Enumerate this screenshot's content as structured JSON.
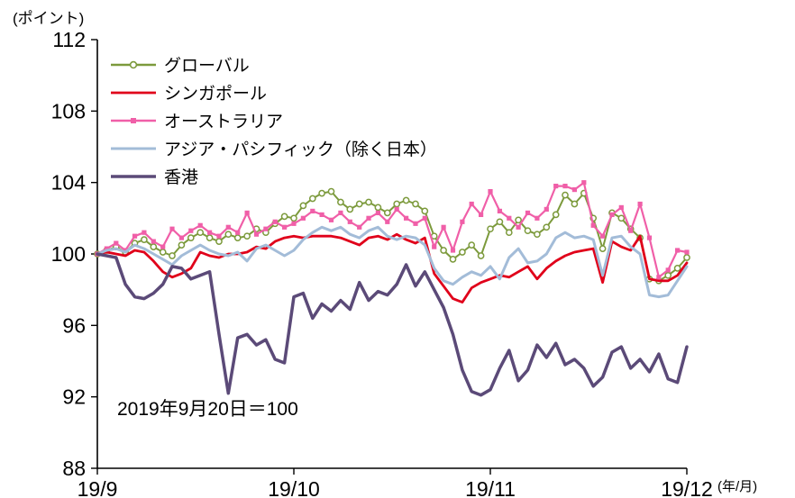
{
  "chart_data": {
    "type": "line",
    "title": "",
    "y_axis_label": "(ポイント)",
    "x_axis_label": "(年/月)",
    "annotation": "2019年9月20日＝100",
    "ylim": [
      88,
      112
    ],
    "y_ticks": [
      88,
      92,
      96,
      100,
      104,
      108,
      112
    ],
    "x_ticks": [
      {
        "label": "19/9",
        "index": 0
      },
      {
        "label": "19/10",
        "index": 21
      },
      {
        "label": "19/11",
        "index": 42
      },
      {
        "label": "19/12",
        "index": 63
      }
    ],
    "n_points": 64,
    "grid": false,
    "legend_position": "top-left-inside",
    "series": [
      {
        "id": "global",
        "name": "グローバル",
        "color": "#7c9a3c",
        "marker": "circle",
        "width": 2,
        "values": [
          100.0,
          100.2,
          100.4,
          100.1,
          100.6,
          100.8,
          100.4,
          100.1,
          99.9,
          100.5,
          100.9,
          101.2,
          100.9,
          100.7,
          101.1,
          100.9,
          101.0,
          101.4,
          101.2,
          101.7,
          102.1,
          102.0,
          102.7,
          103.1,
          103.4,
          103.5,
          102.9,
          102.5,
          102.8,
          102.9,
          102.6,
          102.3,
          102.8,
          103.0,
          102.8,
          102.4,
          101.0,
          100.2,
          99.7,
          100.1,
          100.5,
          99.9,
          101.4,
          101.8,
          101.2,
          101.9,
          101.3,
          101.1,
          101.5,
          102.2,
          103.3,
          102.8,
          103.4,
          102.0,
          100.3,
          102.3,
          102.0,
          101.4,
          100.9,
          98.6,
          98.5,
          98.8,
          99.2,
          99.8
        ]
      },
      {
        "id": "singapore",
        "name": "シンガポール",
        "color": "#e0001a",
        "marker": "none",
        "width": 2.8,
        "values": [
          100.0,
          100.1,
          100.0,
          99.9,
          100.2,
          100.1,
          99.6,
          99.0,
          98.7,
          98.9,
          99.2,
          100.1,
          99.9,
          99.8,
          100.0,
          100.0,
          100.1,
          100.4,
          100.3,
          100.7,
          100.9,
          101.0,
          100.9,
          101.0,
          101.0,
          101.0,
          100.9,
          100.7,
          100.5,
          100.9,
          101.0,
          100.8,
          101.1,
          100.8,
          100.6,
          100.9,
          98.9,
          98.2,
          97.5,
          97.3,
          98.1,
          98.4,
          98.6,
          98.8,
          98.7,
          99.0,
          99.3,
          98.6,
          99.2,
          99.6,
          99.9,
          100.1,
          100.2,
          100.3,
          98.4,
          100.7,
          100.4,
          100.2,
          101.0,
          98.6,
          98.5,
          98.5,
          98.8,
          99.5
        ]
      },
      {
        "id": "australia",
        "name": "オーストラリア",
        "color": "#f05fa8",
        "marker": "square",
        "width": 2.2,
        "values": [
          100.0,
          100.3,
          100.6,
          100.2,
          101.0,
          101.2,
          100.7,
          100.4,
          101.4,
          100.9,
          101.3,
          101.6,
          101.2,
          101.0,
          101.5,
          101.2,
          102.3,
          101.1,
          101.4,
          101.8,
          101.5,
          101.7,
          102.0,
          102.4,
          102.2,
          101.9,
          102.3,
          101.8,
          101.5,
          102.0,
          102.3,
          101.8,
          102.5,
          102.0,
          101.7,
          102.0,
          100.4,
          101.5,
          100.2,
          101.8,
          102.8,
          102.2,
          103.5,
          102.4,
          102.0,
          101.5,
          102.3,
          102.0,
          102.5,
          103.8,
          103.8,
          103.6,
          104.0,
          101.6,
          101.0,
          102.2,
          102.6,
          101.3,
          102.8,
          100.9,
          98.7,
          99.1,
          100.2,
          100.1
        ]
      },
      {
        "id": "asia-pacific-ex-japan",
        "name": "アジア・パシフィック（除く日本）",
        "color": "#a3bcd8",
        "marker": "none",
        "width": 3,
        "values": [
          100.0,
          100.2,
          100.3,
          100.1,
          100.5,
          100.3,
          100.0,
          99.7,
          99.4,
          99.9,
          100.2,
          100.5,
          100.2,
          100.0,
          99.9,
          100.1,
          99.6,
          100.3,
          100.5,
          100.2,
          99.9,
          100.2,
          100.8,
          101.2,
          101.5,
          101.3,
          101.5,
          101.1,
          100.9,
          101.3,
          101.5,
          101.0,
          100.8,
          101.0,
          100.9,
          100.5,
          99.2,
          98.5,
          98.3,
          98.7,
          99.0,
          98.8,
          99.3,
          98.6,
          99.8,
          100.3,
          99.5,
          99.6,
          100.0,
          100.9,
          101.2,
          100.9,
          101.0,
          100.8,
          98.8,
          100.9,
          101.0,
          100.4,
          100.0,
          97.7,
          97.6,
          97.7,
          98.5,
          99.3
        ]
      },
      {
        "id": "hong-kong",
        "name": "香港",
        "color": "#5b4a78",
        "marker": "none",
        "width": 3.5,
        "values": [
          100.0,
          99.9,
          99.8,
          98.3,
          97.6,
          97.5,
          97.8,
          98.3,
          99.3,
          99.2,
          98.6,
          98.8,
          99.0,
          95.5,
          92.2,
          95.3,
          95.5,
          94.9,
          95.2,
          94.1,
          93.9,
          97.6,
          97.8,
          96.4,
          97.2,
          96.8,
          97.4,
          96.9,
          98.4,
          97.4,
          97.9,
          97.7,
          98.3,
          99.4,
          98.2,
          99.0,
          98.0,
          97.0,
          95.5,
          93.5,
          92.3,
          92.1,
          92.4,
          93.6,
          94.6,
          92.9,
          93.5,
          94.9,
          94.2,
          95.0,
          93.8,
          94.1,
          93.6,
          92.6,
          93.1,
          94.5,
          94.8,
          93.6,
          94.1,
          93.4,
          94.4,
          93.0,
          92.8,
          94.8
        ]
      }
    ]
  }
}
